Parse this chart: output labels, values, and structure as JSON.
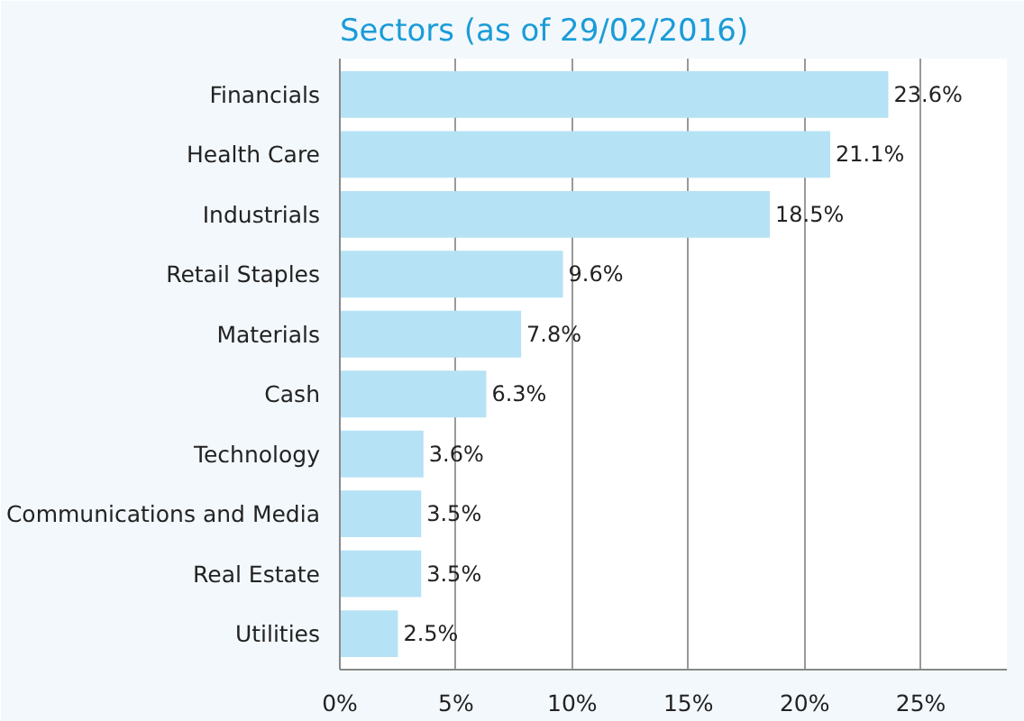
{
  "chart_data": {
    "type": "bar",
    "orientation": "horizontal",
    "title": "Sectors (as of 29/02/2016)",
    "categories": [
      "Financials",
      "Health Care",
      "Industrials",
      "Retail Staples",
      "Materials",
      "Cash",
      "Technology",
      "Communications and Media",
      "Real Estate",
      "Utilities"
    ],
    "values": [
      23.6,
      21.1,
      18.5,
      9.6,
      7.8,
      6.3,
      3.6,
      3.5,
      3.5,
      2.5
    ],
    "color": "#b6e2f5",
    "value_labels": [
      "23.6%",
      "21.1%",
      "18.5%",
      "9.6%",
      "7.8%",
      "6.3%",
      "3.6%",
      "3.5%",
      "3.5%",
      "2.5%"
    ],
    "xlim": [
      0,
      28.7
    ],
    "xticks": [
      {
        "value": 0,
        "label": "0%"
      },
      {
        "value": 5,
        "label": "5%"
      },
      {
        "value": 10,
        "label": "10%"
      },
      {
        "value": 15,
        "label": "15%"
      },
      {
        "value": 20,
        "label": "20%"
      },
      {
        "value": 25,
        "label": "25%"
      }
    ],
    "grid": "x"
  }
}
